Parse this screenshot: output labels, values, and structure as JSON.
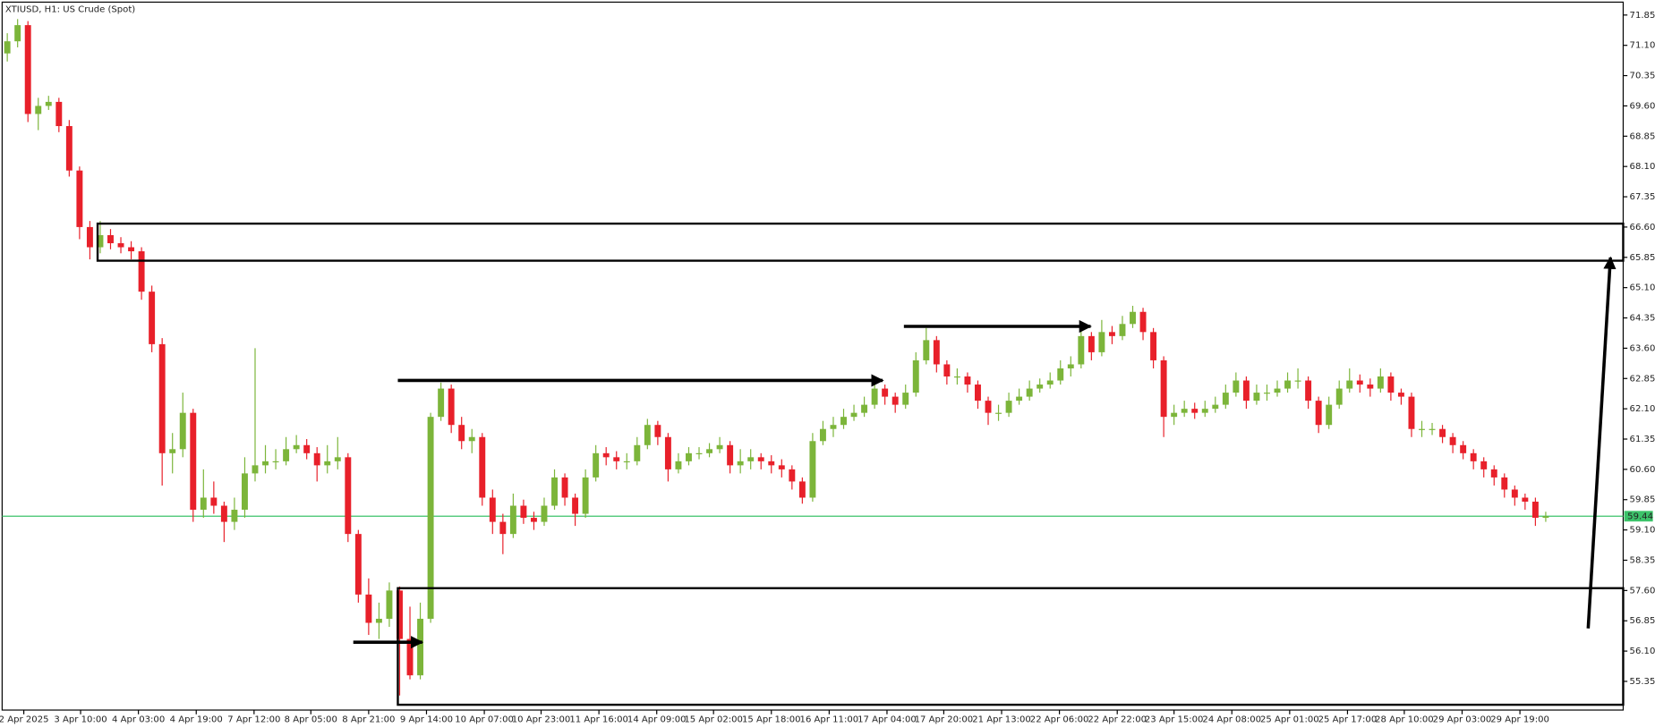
{
  "chart_data": {
    "type": "candlestick",
    "title": "XTIUSD, H1:  US Crude (Spot)",
    "up_color": "#7cb53a",
    "down_color": "#e8202a",
    "last_price": 59.44,
    "last_price_color": "#3cc36a",
    "ylim": [
      54.64,
      72.17
    ],
    "yticks": [
      71.85,
      {
        "value": 71.1,
        "label": "71.10"
      },
      70.35,
      {
        "value": 69.6,
        "label": "69.60"
      },
      68.85,
      {
        "value": 68.1,
        "label": "68.10"
      },
      67.35,
      {
        "value": 66.6,
        "label": "66.60"
      },
      65.85,
      {
        "value": 65.1,
        "label": "65.10"
      },
      64.35,
      {
        "value": 63.6,
        "label": "63.60"
      },
      62.85,
      {
        "value": 62.1,
        "label": "62.10"
      },
      61.35,
      {
        "value": 60.6,
        "label": "60.60"
      },
      59.85,
      {
        "value": 59.1,
        "label": "59.10"
      },
      58.35,
      {
        "value": 57.6,
        "label": "57.60"
      },
      56.85,
      {
        "value": 56.1,
        "label": "56.10"
      },
      55.35
    ],
    "xlim": [
      -0.5,
      156.5
    ],
    "xticks": [
      {
        "value": 1.6,
        "label": "2 Apr 2025"
      },
      {
        "value": 7.1,
        "label": "3 Apr 10:00"
      },
      {
        "value": 12.7,
        "label": "4 Apr 03:00"
      },
      {
        "value": 18.3,
        "label": "4 Apr 19:00"
      },
      {
        "value": 23.9,
        "label": "7 Apr 12:00"
      },
      {
        "value": 29.4,
        "label": "8 Apr 05:00"
      },
      {
        "value": 35,
        "label": "8 Apr 21:00"
      },
      {
        "value": 40.6,
        "label": "9 Apr 14:00"
      },
      {
        "value": 46.2,
        "label": "10 Apr 07:00"
      },
      {
        "value": 51.7,
        "label": "10 Apr 23:00"
      },
      {
        "value": 57.3,
        "label": "11 Apr 16:00"
      },
      {
        "value": 62.9,
        "label": "14 Apr 09:00"
      },
      {
        "value": 68.4,
        "label": "15 Apr 02:00"
      },
      {
        "value": 74,
        "label": "15 Apr 18:00"
      },
      {
        "value": 79.6,
        "label": "16 Apr 11:00"
      },
      {
        "value": 85.2,
        "label": "17 Apr 04:00"
      },
      {
        "value": 90.7,
        "label": "17 Apr 20:00"
      },
      {
        "value": 96.3,
        "label": "21 Apr 13:00"
      },
      {
        "value": 101.9,
        "label": "22 Apr 06:00"
      },
      {
        "value": 107.5,
        "label": "22 Apr 22:00"
      },
      {
        "value": 113,
        "label": "23 Apr 15:00"
      },
      {
        "value": 118.6,
        "label": "24 Apr 08:00"
      },
      {
        "value": 124.2,
        "label": "25 Apr 01:00"
      },
      {
        "value": 129.8,
        "label": "25 Apr 17:00"
      },
      {
        "value": 135.3,
        "label": "28 Apr 10:00"
      },
      {
        "value": 140.9,
        "label": "29 Apr 03:00"
      },
      {
        "value": 146.5,
        "label": "29 Apr 19:00"
      }
    ],
    "open": [
      70.9,
      71.2,
      71.6,
      69.4,
      69.6,
      69.7,
      69.1,
      68.0,
      66.6,
      66.1,
      66.4,
      66.2,
      66.1,
      66.0,
      65.0,
      63.7,
      61.0,
      61.1,
      62.0,
      59.6,
      59.9,
      59.7,
      59.3,
      59.6,
      60.5,
      60.7,
      60.8,
      60.8,
      61.1,
      61.2,
      61.0,
      60.7,
      60.8,
      60.9,
      59.0,
      57.5,
      56.8,
      56.9,
      57.6,
      56.4,
      55.5,
      56.9,
      61.9,
      62.6,
      61.7,
      61.3,
      61.4,
      59.9,
      59.3,
      59.0,
      59.7,
      59.4,
      59.3,
      59.7,
      60.4,
      59.9,
      59.5,
      60.4,
      61.0,
      60.9,
      60.8,
      60.8,
      61.2,
      61.7,
      61.4,
      60.6,
      60.8,
      61.0,
      61.0,
      61.1,
      61.2,
      60.7,
      60.8,
      60.9,
      60.8,
      60.7,
      60.6,
      60.3,
      59.9,
      61.3,
      61.6,
      61.7,
      61.9,
      62.0,
      62.2,
      62.6,
      62.4,
      62.2,
      62.5,
      63.3,
      63.8,
      63.2,
      62.9,
      62.9,
      62.7,
      62.3,
      62.0,
      62.0,
      62.3,
      62.4,
      62.6,
      62.7,
      62.8,
      63.1,
      63.2,
      63.9,
      63.5,
      64.0,
      63.9,
      64.2,
      64.5,
      64.0,
      63.3,
      61.9,
      62.0,
      62.1,
      62.0,
      62.1,
      62.2,
      62.5,
      62.8,
      62.3,
      62.5,
      62.5,
      62.6,
      62.8,
      62.8,
      62.3,
      61.7,
      62.2,
      62.6,
      62.8,
      62.7,
      62.6,
      62.9,
      62.5,
      62.4,
      61.6,
      61.6,
      61.6,
      61.4,
      61.2,
      61.0,
      60.8,
      60.6,
      60.4,
      60.1,
      59.9,
      59.8,
      59.4
    ],
    "high": [
      71.4,
      71.75,
      71.7,
      69.8,
      69.85,
      69.8,
      69.25,
      68.1,
      66.75,
      66.75,
      66.55,
      66.35,
      66.25,
      66.1,
      65.15,
      63.85,
      61.5,
      62.5,
      62.1,
      60.6,
      60.3,
      59.8,
      59.9,
      60.9,
      63.6,
      61.2,
      61.1,
      61.4,
      61.45,
      61.35,
      61.15,
      61.2,
      61.4,
      61.0,
      59.1,
      57.9,
      57.3,
      57.8,
      57.7,
      57.2,
      57.3,
      62.0,
      62.75,
      62.7,
      61.9,
      61.6,
      61.5,
      60.1,
      59.5,
      60.0,
      59.85,
      59.55,
      59.9,
      60.6,
      60.5,
      60.0,
      60.6,
      61.2,
      61.15,
      61.05,
      61.0,
      61.4,
      61.85,
      61.8,
      61.5,
      61.0,
      61.15,
      61.15,
      61.25,
      61.4,
      61.3,
      61.1,
      61.1,
      61.0,
      60.95,
      60.85,
      60.7,
      60.4,
      61.5,
      61.8,
      61.9,
      62.1,
      62.2,
      62.4,
      62.75,
      62.7,
      62.5,
      62.7,
      63.5,
      64.1,
      63.9,
      63.3,
      63.1,
      63.0,
      62.8,
      62.4,
      62.2,
      62.5,
      62.6,
      62.8,
      62.85,
      63.0,
      63.3,
      63.4,
      64.1,
      64.0,
      64.3,
      64.15,
      64.4,
      64.65,
      64.6,
      64.1,
      63.4,
      62.2,
      62.3,
      62.25,
      62.3,
      62.4,
      62.7,
      63.0,
      62.9,
      62.7,
      62.7,
      62.8,
      63.0,
      63.1,
      62.9,
      62.4,
      62.4,
      62.8,
      63.1,
      62.95,
      62.85,
      63.1,
      63.0,
      62.6,
      62.5,
      61.8,
      61.75,
      61.7,
      61.5,
      61.3,
      61.1,
      60.9,
      60.7,
      60.5,
      60.2,
      60.0,
      59.9,
      59.55
    ],
    "low": [
      70.7,
      71.05,
      69.2,
      69.0,
      69.5,
      68.95,
      67.85,
      66.3,
      65.8,
      65.95,
      66.05,
      65.95,
      65.8,
      64.8,
      63.5,
      60.2,
      60.5,
      60.9,
      59.3,
      59.4,
      59.5,
      58.8,
      59.1,
      59.4,
      60.3,
      60.5,
      60.6,
      60.7,
      61.0,
      60.85,
      60.3,
      60.5,
      60.6,
      58.8,
      57.3,
      56.5,
      56.4,
      56.7,
      55.0,
      55.4,
      55.4,
      56.8,
      61.8,
      61.5,
      61.1,
      61.0,
      59.7,
      59.0,
      58.5,
      58.9,
      59.25,
      59.1,
      59.2,
      59.6,
      59.7,
      59.2,
      59.4,
      60.3,
      60.7,
      60.6,
      60.6,
      60.7,
      61.1,
      61.2,
      60.3,
      60.5,
      60.7,
      60.85,
      60.9,
      61.0,
      60.5,
      60.5,
      60.6,
      60.6,
      60.5,
      60.4,
      60.1,
      59.75,
      59.8,
      61.2,
      61.4,
      61.6,
      61.8,
      61.9,
      62.1,
      62.2,
      62.0,
      62.1,
      62.4,
      63.2,
      63.0,
      62.7,
      62.7,
      62.5,
      62.1,
      61.7,
      61.8,
      61.9,
      62.2,
      62.3,
      62.5,
      62.6,
      62.7,
      62.9,
      63.1,
      63.3,
      63.4,
      63.7,
      63.8,
      64.1,
      63.8,
      63.1,
      61.4,
      61.7,
      61.9,
      61.85,
      61.9,
      62.0,
      62.1,
      62.4,
      62.1,
      62.2,
      62.3,
      62.4,
      62.5,
      62.6,
      62.1,
      61.5,
      61.6,
      62.1,
      62.5,
      62.5,
      62.4,
      62.5,
      62.3,
      62.2,
      61.4,
      61.4,
      61.45,
      61.25,
      61.0,
      60.85,
      60.6,
      60.4,
      60.2,
      59.9,
      59.7,
      59.6,
      59.2,
      59.3
    ],
    "close": [
      71.2,
      71.6,
      69.4,
      69.6,
      69.7,
      69.1,
      68.0,
      66.6,
      66.1,
      66.4,
      66.2,
      66.1,
      66.0,
      65.0,
      63.7,
      61.0,
      61.1,
      62.0,
      59.6,
      59.9,
      59.7,
      59.3,
      59.6,
      60.5,
      60.7,
      60.8,
      60.8,
      61.1,
      61.2,
      61.0,
      60.7,
      60.8,
      60.9,
      59.0,
      57.5,
      56.8,
      56.9,
      57.6,
      56.4,
      55.5,
      56.9,
      61.9,
      62.6,
      61.7,
      61.3,
      61.4,
      59.9,
      59.3,
      59.0,
      59.7,
      59.4,
      59.3,
      59.7,
      60.4,
      59.9,
      59.5,
      60.4,
      61.0,
      60.9,
      60.8,
      60.8,
      61.2,
      61.7,
      61.4,
      60.6,
      60.8,
      61.0,
      61.0,
      61.1,
      61.2,
      60.7,
      60.8,
      60.9,
      60.8,
      60.7,
      60.6,
      60.3,
      59.9,
      61.3,
      61.6,
      61.7,
      61.9,
      62.0,
      62.2,
      62.6,
      62.4,
      62.2,
      62.5,
      63.3,
      63.8,
      63.2,
      62.9,
      62.9,
      62.7,
      62.3,
      62.0,
      62.0,
      62.3,
      62.4,
      62.6,
      62.7,
      62.8,
      63.1,
      63.2,
      63.9,
      63.5,
      64.0,
      63.9,
      64.2,
      64.5,
      64.0,
      63.3,
      61.9,
      62.0,
      62.1,
      62.0,
      62.1,
      62.2,
      62.5,
      62.8,
      62.3,
      62.5,
      62.5,
      62.6,
      62.8,
      62.8,
      62.3,
      61.7,
      62.2,
      62.6,
      62.8,
      62.7,
      62.6,
      62.9,
      62.5,
      62.4,
      61.6,
      61.6,
      61.6,
      61.4,
      61.2,
      61.0,
      60.8,
      60.6,
      60.4,
      60.1,
      59.9,
      59.8,
      59.4,
      59.44
    ]
  }
}
